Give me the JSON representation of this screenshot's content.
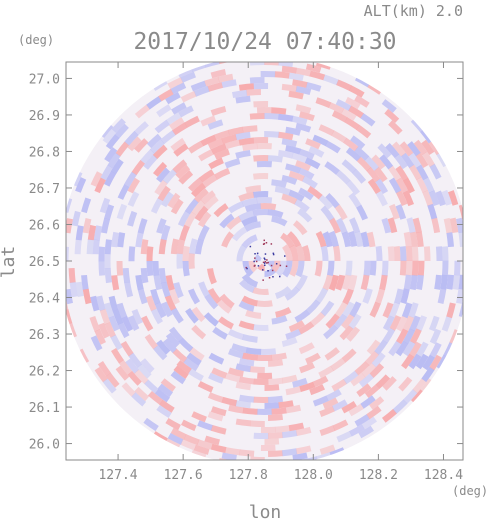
{
  "header": {
    "altitude_label": "ALT(km)  2.0",
    "timestamp": "2017/10/24 07:40:30"
  },
  "chart_data": {
    "type": "heatmap",
    "title": "2017/10/24 07:40:30",
    "subtitle": "ALT(km)  2.0",
    "xlabel": "lon",
    "ylabel": "lat",
    "x_unit": "(deg)",
    "y_unit": "(deg)",
    "xlim": [
      127.24,
      128.46
    ],
    "ylim": [
      25.955,
      27.045
    ],
    "x_ticks": [
      127.4,
      127.6,
      127.8,
      128.0,
      128.2,
      128.4
    ],
    "x_tick_labels": [
      "127.4",
      "127.6",
      "127.8",
      "128.0",
      "128.2",
      "128.4"
    ],
    "y_ticks": [
      26.0,
      26.1,
      26.2,
      26.3,
      26.4,
      26.5,
      26.6,
      26.7,
      26.8,
      26.9,
      27.0
    ],
    "y_tick_labels": [
      "26.0",
      "26.1",
      "26.2",
      "26.3",
      "26.4",
      "26.5",
      "26.6",
      "26.7",
      "26.8",
      "26.9",
      "27.0"
    ],
    "radar_center": {
      "lon": 127.85,
      "lat": 26.5
    },
    "field": "polar radial-velocity pattern of alternating positive and negative cells around the radar site",
    "colors": {
      "positive": "#f7a4a6",
      "negative": "#b3b6f3",
      "neutral": "#f4f0f6",
      "axis": "#8a8a8a"
    },
    "grid": false
  }
}
